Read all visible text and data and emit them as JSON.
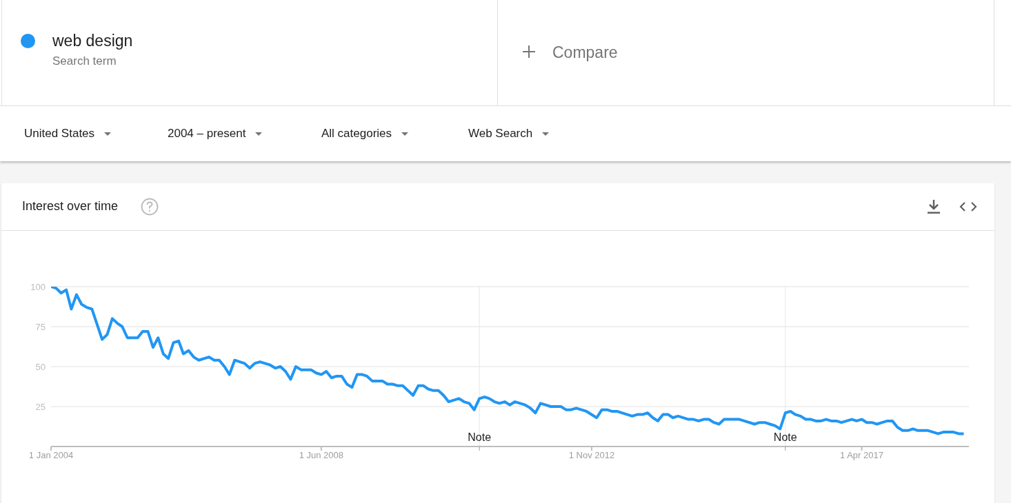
{
  "chart_data": {
    "type": "line",
    "title": "Interest over time",
    "annotations": [
      "Search term",
      "Compare",
      "United States",
      "2004 – present",
      "All categories",
      "Web Search"
    ],
    "ref_lines": [
      {
        "axis": "x",
        "value": "2011-01",
        "label": "Note"
      },
      {
        "axis": "x",
        "value": "2016-01",
        "label": "Note"
      }
    ],
    "series": [
      {
        "name": "web design",
        "color": "#2196f3",
        "x": [
          "2004-01",
          "2004-02",
          "2004-03",
          "2004-04",
          "2004-05",
          "2004-06",
          "2004-07",
          "2004-08",
          "2004-09",
          "2004-11",
          "2004-12",
          "2005-01",
          "2005-02",
          "2005-03",
          "2005-04",
          "2005-06",
          "2005-07",
          "2005-08",
          "2005-09",
          "2005-10",
          "2005-11",
          "2005-12",
          "2006-01",
          "2006-02",
          "2006-03",
          "2006-04",
          "2006-05",
          "2006-06",
          "2006-08",
          "2006-09",
          "2006-10",
          "2006-11",
          "2006-12",
          "2007-01",
          "2007-03",
          "2007-04",
          "2007-05",
          "2007-06",
          "2007-08",
          "2007-09",
          "2007-10",
          "2007-11",
          "2007-12",
          "2008-01",
          "2008-02",
          "2008-04",
          "2008-05",
          "2008-06",
          "2008-07",
          "2008-08",
          "2008-09",
          "2008-10",
          "2008-11",
          "2008-12",
          "2009-01",
          "2009-02",
          "2009-03",
          "2009-04",
          "2009-06",
          "2009-07",
          "2009-08",
          "2009-09",
          "2009-10",
          "2009-12",
          "2010-01",
          "2010-02",
          "2010-03",
          "2010-04",
          "2010-05",
          "2010-06",
          "2010-07",
          "2010-09",
          "2010-10",
          "2010-11",
          "2010-12",
          "2011-01",
          "2011-02",
          "2011-03",
          "2011-04",
          "2011-05",
          "2011-06",
          "2011-07",
          "2011-08",
          "2011-09",
          "2011-10",
          "2011-11",
          "2011-12",
          "2012-01",
          "2012-02",
          "2012-03",
          "2012-05",
          "2012-06",
          "2012-07",
          "2012-08",
          "2012-10",
          "2012-12",
          "2013-01",
          "2013-02",
          "2013-03",
          "2013-04",
          "2013-07",
          "2013-08",
          "2013-09",
          "2013-10",
          "2013-11",
          "2013-12",
          "2014-01",
          "2014-02",
          "2014-03",
          "2014-04",
          "2014-06",
          "2014-07",
          "2014-08",
          "2014-09",
          "2014-10",
          "2014-11",
          "2014-12",
          "2015-01",
          "2015-04",
          "2015-05",
          "2015-07",
          "2015-08",
          "2015-09",
          "2015-10",
          "2015-11",
          "2015-12",
          "2016-01",
          "2016-02",
          "2016-03",
          "2016-04",
          "2016-05",
          "2016-06",
          "2016-07",
          "2016-08",
          "2016-09",
          "2016-10",
          "2016-11",
          "2016-12",
          "2017-01",
          "2017-02",
          "2017-03",
          "2017-04",
          "2017-05",
          "2017-06",
          "2017-07",
          "2017-08",
          "2017-09",
          "2017-10",
          "2017-11",
          "2017-12",
          "2018-01",
          "2018-02",
          "2018-03",
          "2018-05",
          "2018-06",
          "2018-07",
          "2018-08",
          "2018-10",
          "2018-11",
          "2018-12"
        ],
        "values": [
          100,
          99,
          96,
          98,
          86,
          95,
          89,
          87,
          86,
          67,
          70,
          80,
          77,
          75,
          68,
          68,
          72,
          72,
          62,
          68,
          58,
          55,
          65,
          66,
          58,
          60,
          56,
          54,
          56,
          54,
          54,
          50,
          45,
          54,
          52,
          49,
          52,
          53,
          51,
          49,
          50,
          47,
          42,
          50,
          48,
          48,
          46,
          45,
          47,
          43,
          44,
          44,
          39,
          37,
          45,
          45,
          44,
          41,
          41,
          39,
          39,
          38,
          38,
          32,
          38,
          38,
          36,
          35,
          35,
          32,
          28,
          30,
          28,
          27,
          23,
          30,
          31,
          30,
          28,
          27,
          28,
          26,
          28,
          27,
          26,
          24,
          21,
          27,
          26,
          25,
          25,
          23,
          23,
          24,
          22,
          18,
          23,
          23,
          22,
          22,
          19,
          20,
          20,
          21,
          18,
          16,
          20,
          20,
          18,
          19,
          17,
          17,
          16,
          17,
          17,
          15,
          14,
          17,
          17,
          16,
          14,
          15,
          15,
          14,
          13,
          11,
          21,
          22,
          20,
          19,
          17,
          17,
          16,
          16,
          17,
          16,
          16,
          15,
          16,
          17,
          16,
          17,
          15,
          15,
          14,
          15,
          16,
          16,
          12,
          10,
          10,
          11,
          10,
          10,
          9,
          8,
          9,
          9,
          8,
          8
        ]
      }
    ],
    "xlim": [
      "2004-01",
      "2019-01"
    ],
    "xticks": [
      {
        "value": "2004-01-01",
        "label": "1 Jan 2004"
      },
      {
        "value": "2008-06-01",
        "label": "1 Jun 2008"
      },
      {
        "value": "2012-11-01",
        "label": "1 Nov 2012"
      },
      {
        "value": "2017-04-01",
        "label": "1 Apr 2017"
      }
    ],
    "ylim": [
      0,
      100
    ],
    "yticks": [
      {
        "value": 0,
        "label": null
      },
      25,
      50,
      75,
      100
    ],
    "grid": "y",
    "legend": "top left",
    "marker": "none",
    "line_style": "solid"
  }
}
